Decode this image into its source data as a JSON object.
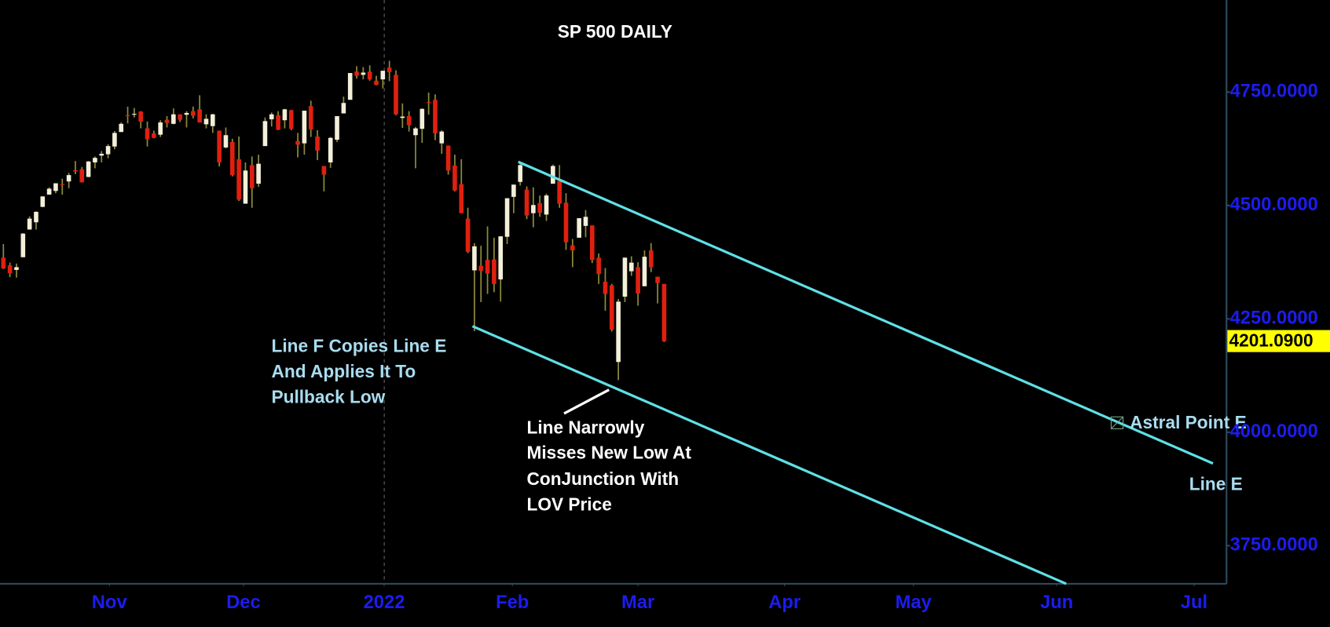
{
  "chart_data": {
    "type": "candlestick",
    "title": "SP 500 DAILY",
    "open": [
      4385,
      4368,
      4358,
      4386,
      4447,
      4463,
      4497,
      4524,
      4532,
      4547,
      4553,
      4578,
      4580,
      4563,
      4595,
      4610,
      4613,
      4630,
      4662,
      4699,
      4701,
      4707,
      4670,
      4659,
      4656,
      4689,
      4680,
      4701,
      4700,
      4708,
      4712,
      4679,
      4675,
      4665,
      4628,
      4640,
      4602,
      4504,
      4589,
      4548,
      4631,
      4690,
      4699,
      4688,
      4710,
      4642,
      4637,
      4719,
      4652,
      4587,
      4595,
      4645,
      4703,
      4733,
      4795,
      4788,
      4795,
      4775,
      4778,
      4804,
      4788,
      4693,
      4697,
      4655,
      4669,
      4728,
      4733,
      4637,
      4632,
      4588,
      4547,
      4471,
      4357,
      4367,
      4380,
      4381,
      4337,
      4431,
      4519,
      4552,
      4535,
      4483,
      4505,
      4480,
      4548,
      4554,
      4506,
      4412,
      4429,
      4455,
      4456,
      4385,
      4332,
      4324,
      4155,
      4299,
      4355,
      4364,
      4322,
      4401,
      4343,
      4327
    ],
    "high": [
      4415,
      4374,
      4372,
      4439,
      4476,
      4487,
      4520,
      4540,
      4549,
      4559,
      4572,
      4598,
      4585,
      4598,
      4608,
      4620,
      4635,
      4664,
      4683,
      4718,
      4715,
      4708,
      4685,
      4665,
      4688,
      4697,
      4714,
      4701,
      4708,
      4718,
      4743,
      4701,
      4702,
      4665,
      4672,
      4647,
      4652,
      4595,
      4608,
      4612,
      4694,
      4705,
      4708,
      4713,
      4711,
      4660,
      4709,
      4731,
      4666,
      4587,
      4651,
      4697,
      4740,
      4792,
      4807,
      4805,
      4809,
      4786,
      4797,
      4819,
      4798,
      4725,
      4708,
      4673,
      4714,
      4749,
      4745,
      4666,
      4632,
      4612,
      4602,
      4495,
      4417,
      4411,
      4454,
      4429,
      4432,
      4516,
      4546,
      4595,
      4542,
      4540,
      4522,
      4526,
      4590,
      4589,
      4527,
      4426,
      4472,
      4490,
      4456,
      4394,
      4362,
      4327,
      4294,
      4385,
      4388,
      4375,
      4401,
      4417,
      4343,
      4327
    ],
    "low": [
      4360,
      4342,
      4341,
      4386,
      4447,
      4447,
      4496,
      4524,
      4527,
      4524,
      4538,
      4569,
      4551,
      4562,
      4582,
      4595,
      4604,
      4624,
      4662,
      4681,
      4694,
      4670,
      4630,
      4648,
      4651,
      4672,
      4679,
      4684,
      4672,
      4692,
      4683,
      4670,
      4660,
      4586,
      4626,
      4564,
      4510,
      4504,
      4495,
      4541,
      4631,
      4674,
      4666,
      4670,
      4666,
      4606,
      4612,
      4651,
      4600,
      4531,
      4583,
      4640,
      4703,
      4733,
      4780,
      4778,
      4775,
      4765,
      4758,
      4774,
      4699,
      4671,
      4663,
      4582,
      4638,
      4700,
      4644,
      4614,
      4568,
      4531,
      4483,
      4395,
      4223,
      4287,
      4305,
      4309,
      4288,
      4415,
      4483,
      4544,
      4470,
      4452,
      4475,
      4466,
      4548,
      4495,
      4402,
      4364,
      4429,
      4430,
      4373,
      4327,
      4268,
      4222,
      4115,
      4287,
      4345,
      4279,
      4322,
      4353,
      4284,
      4199
    ],
    "close": [
      4361,
      4351,
      4364,
      4438,
      4471,
      4486,
      4520,
      4537,
      4549,
      4545,
      4567,
      4575,
      4551,
      4597,
      4605,
      4614,
      4631,
      4660,
      4680,
      4697,
      4702,
      4685,
      4646,
      4649,
      4683,
      4682,
      4701,
      4689,
      4704,
      4698,
      4683,
      4691,
      4701,
      4595,
      4655,
      4567,
      4513,
      4577,
      4538,
      4592,
      4686,
      4701,
      4667,
      4712,
      4669,
      4634,
      4709,
      4668,
      4621,
      4568,
      4649,
      4697,
      4726,
      4792,
      4786,
      4793,
      4778,
      4766,
      4797,
      4794,
      4701,
      4696,
      4677,
      4670,
      4713,
      4726,
      4659,
      4663,
      4577,
      4533,
      4483,
      4398,
      4410,
      4356,
      4350,
      4327,
      4432,
      4516,
      4546,
      4589,
      4478,
      4501,
      4484,
      4522,
      4587,
      4504,
      4419,
      4401,
      4472,
      4475,
      4380,
      4349,
      4305,
      4226,
      4288,
      4385,
      4374,
      4306,
      4387,
      4364,
      4329,
      4201
    ],
    "up_color": "#f4efd9",
    "down_color": "#e0200f",
    "wick_color": "#8c8a3c",
    "ylim": [
      3666,
      4953
    ],
    "yticks": [
      {
        "value": 4750,
        "label": "4750.0000"
      },
      {
        "value": 4500,
        "label": "4500.0000"
      },
      {
        "value": 4250,
        "label": "4250.0000"
      },
      {
        "value": 4000,
        "label": "4000.0000"
      },
      {
        "value": 3750,
        "label": "3750.0000"
      }
    ],
    "xlim": [
      -0.519,
      186.96
    ],
    "xticks": [
      {
        "value": 16.2,
        "label": "Nov"
      },
      {
        "value": 36.7,
        "label": "Dec"
      },
      {
        "value": 58.2,
        "label": "2022"
      },
      {
        "value": 77.8,
        "label": "Feb"
      },
      {
        "value": 97.0,
        "label": "Mar"
      },
      {
        "value": 119.4,
        "label": "Apr"
      },
      {
        "value": 139.1,
        "label": "May"
      },
      {
        "value": 161.0,
        "label": "Jun"
      },
      {
        "value": 182.0,
        "label": "Jul"
      }
    ],
    "last_price": {
      "value": 4201.09,
      "label": "4201.0900"
    },
    "annotations": {
      "line_f": [
        "Line F Copies Line E",
        "And Applies It To",
        "Pullback Low"
      ],
      "line_narrowly": [
        "Line Narrowly",
        "Misses New Low At",
        "ConJunction With",
        "LOV Price"
      ],
      "astral": "Astral Point E",
      "line_e": "Line E"
    }
  }
}
